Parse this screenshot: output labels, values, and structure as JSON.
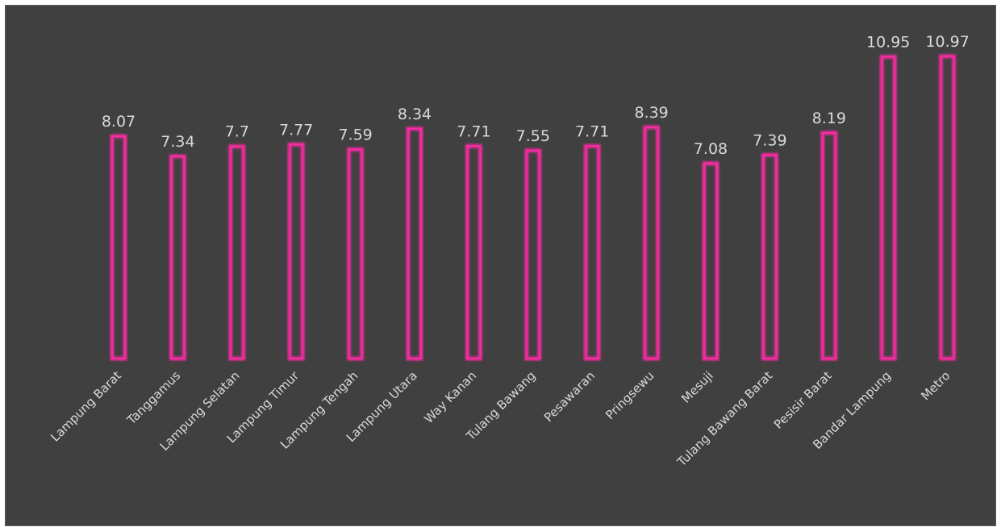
{
  "colors": {
    "background": "#404040",
    "bar_stroke": "#ff2aa6",
    "value_text": "#d9d9d9",
    "category_text": "#d9d9d9"
  },
  "chart_data": {
    "type": "bar",
    "title": "",
    "xlabel": "",
    "ylabel": "",
    "ylim": [
      0,
      11.5
    ],
    "grid": false,
    "legend": "none",
    "bar_style": "outlined",
    "categories": [
      "Lampung Barat",
      "Tanggamus",
      "Lampung Selatan",
      "Lampung Timur",
      "Lampung Tengah",
      "Lampung Utara",
      "Way Kanan",
      "Tulang Bawang",
      "Pesawaran",
      "Pringsewu",
      "Mesuji",
      "Tulang Bawang Barat",
      "Pesisir Barat",
      "Bandar Lampung",
      "Metro"
    ],
    "values": [
      8.07,
      7.34,
      7.7,
      7.77,
      7.59,
      8.34,
      7.71,
      7.55,
      7.71,
      8.39,
      7.08,
      7.39,
      8.19,
      10.95,
      10.97
    ],
    "value_labels": [
      "8.07",
      "7.34",
      "7.7",
      "7.77",
      "7.59",
      "8.34",
      "7.71",
      "7.55",
      "7.71",
      "8.39",
      "7.08",
      "7.39",
      "8.19",
      "10.95",
      "10.97"
    ]
  }
}
